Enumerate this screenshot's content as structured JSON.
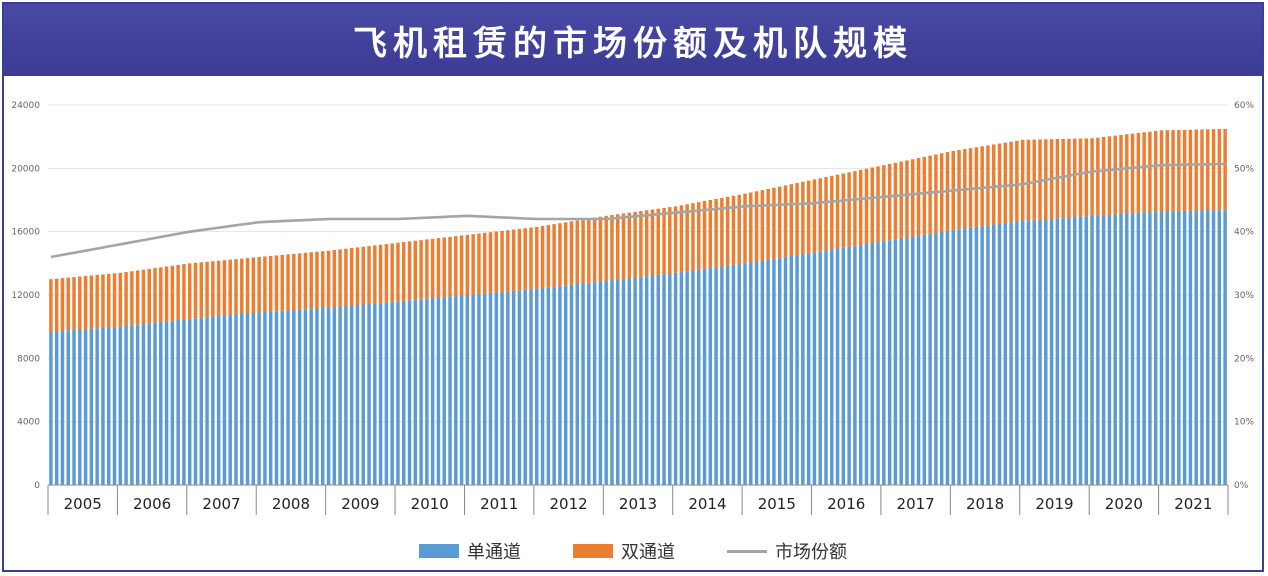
{
  "title": "飞机租赁的市场份额及机队规模",
  "colors": {
    "title_bg": "#3f3f9b",
    "single_aisle": "#5b9bd5",
    "twin_aisle": "#ed7d31",
    "market_share": "#a5a5a5"
  },
  "legend": {
    "single_aisle": "单通道",
    "twin_aisle": "双通道",
    "market_share": "市场份额"
  },
  "chart_data": {
    "type": "bar",
    "stacked": true,
    "years": [
      "2005",
      "2006",
      "2007",
      "2008",
      "2009",
      "2010",
      "2011",
      "2012",
      "2013",
      "2014",
      "2015",
      "2016",
      "2017",
      "2018",
      "2019",
      "2020",
      "2021"
    ],
    "y_left": {
      "ticks": [
        "0",
        "4000",
        "8000",
        "12000",
        "16000",
        "20000",
        "24000"
      ],
      "min": 0,
      "max": 24000
    },
    "y_right": {
      "ticks": [
        "0%",
        "10%",
        "20%",
        "30%",
        "40%",
        "50%",
        "60%"
      ],
      "min": 0,
      "max": 60
    },
    "grid": true,
    "legend_position": "bottom",
    "series": [
      {
        "name": "单通道",
        "axis": "left",
        "annual_values": [
          9700,
          10000,
          10500,
          10900,
          11200,
          11600,
          12000,
          12400,
          12900,
          13400,
          14000,
          14700,
          15400,
          16100,
          16700,
          17000,
          17300
        ]
      },
      {
        "name": "双通道",
        "axis": "left",
        "annual_values": [
          3300,
          3400,
          3500,
          3500,
          3600,
          3700,
          3800,
          3900,
          4100,
          4200,
          4400,
          4600,
          4800,
          5000,
          5100,
          4900,
          5100
        ]
      },
      {
        "name": "市场份额",
        "axis": "right",
        "type": "line",
        "annual_values": [
          36,
          38,
          40,
          41.5,
          42,
          42,
          42.5,
          42,
          42,
          43,
          44,
          44.5,
          45.5,
          46.5,
          47.5,
          49.5,
          50.5
        ]
      }
    ]
  }
}
